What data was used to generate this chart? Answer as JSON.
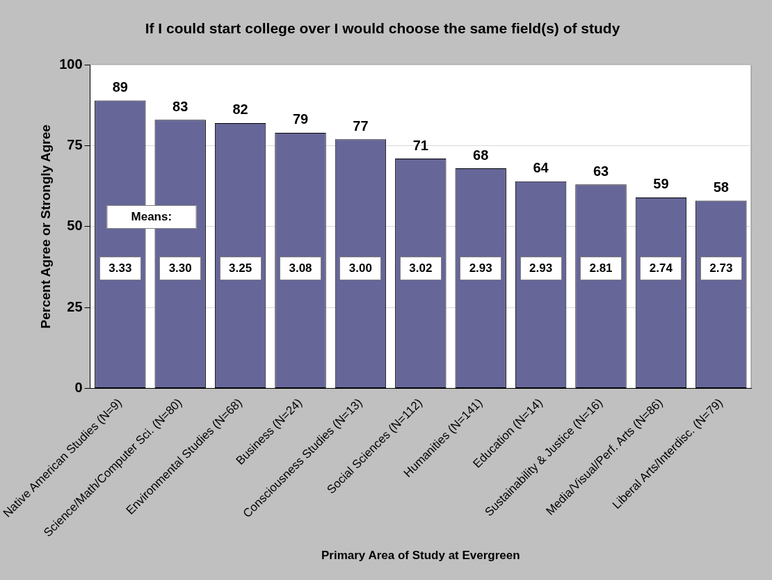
{
  "chart_data": {
    "type": "bar",
    "title": "If I could start college over I would choose the same field(s) of study",
    "xlabel": "Primary Area of Study at Evergreen",
    "ylabel": "Percent Agree or Strongly Agree",
    "categories": [
      "Native American Studies (N=9)",
      "Science/Math/Computer Sci. (N=80)",
      "Environmental Studies (N=68)",
      "Business (N=24)",
      "Consciousness Studies (N=13)",
      "Social Sciences (N=112)",
      "Humanities (N=141)",
      "Education (N=14)",
      "Sustainability & Justice (N=16)",
      "Media/Visual/Perf. Arts (N=86)",
      "Liberal Arts/Interdisc. (N=79)"
    ],
    "values": [
      89,
      83,
      82,
      79,
      77,
      71,
      68,
      64,
      63,
      59,
      58
    ],
    "color": "#666699",
    "ylim": [
      0,
      100
    ],
    "yticks": [
      0,
      25,
      50,
      75,
      100
    ],
    "grid": "y",
    "legend": false,
    "data_labels": true,
    "annotations": [
      "Means:",
      "3.33",
      "3.30",
      "3.25",
      "3.08",
      "3.00",
      "3.02",
      "2.93",
      "2.93",
      "2.81",
      "2.74",
      "2.73"
    ]
  }
}
